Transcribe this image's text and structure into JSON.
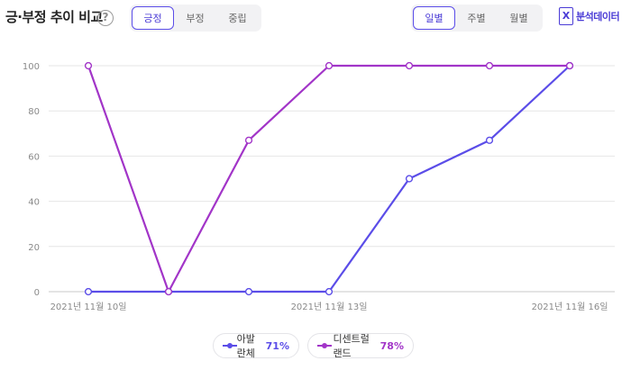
{
  "header": {
    "title": "긍·부정 추이 비교",
    "help_glyph": "?",
    "sentiment_tabs": [
      "긍정",
      "부정",
      "중립"
    ],
    "period_tabs": [
      "일별",
      "주별",
      "월별"
    ],
    "export_label": "분석데이터",
    "export_glyph": "X"
  },
  "colors": {
    "accent": "#4a3bd6",
    "series1": "#5b4de8",
    "series2": "#a235c8",
    "grid": "#e6e6e6"
  },
  "legend": [
    {
      "name": "아발란체",
      "pct": "71%"
    },
    {
      "name": "디센트럴랜드",
      "pct": "78%"
    }
  ],
  "chart_data": {
    "type": "line",
    "x": [
      "2021-11-10",
      "2021-11-11",
      "2021-11-12",
      "2021-11-13",
      "2021-11-14",
      "2021-11-15",
      "2021-11-16"
    ],
    "x_tick_labels": [
      "2021년 11월 10일",
      "2021년 11월 13일",
      "2021년 11월 16일"
    ],
    "x_tick_indices": [
      0,
      3,
      6
    ],
    "ylim": [
      0,
      100
    ],
    "y_ticks": [
      0,
      20,
      40,
      60,
      80,
      100
    ],
    "grid": true,
    "legend_position": "bottom",
    "series": [
      {
        "name": "아발란체",
        "values": [
          0,
          0,
          0,
          0,
          50,
          67,
          100
        ]
      },
      {
        "name": "디센트럴랜드",
        "values": [
          100,
          0,
          67,
          100,
          100,
          100,
          100
        ]
      }
    ]
  }
}
